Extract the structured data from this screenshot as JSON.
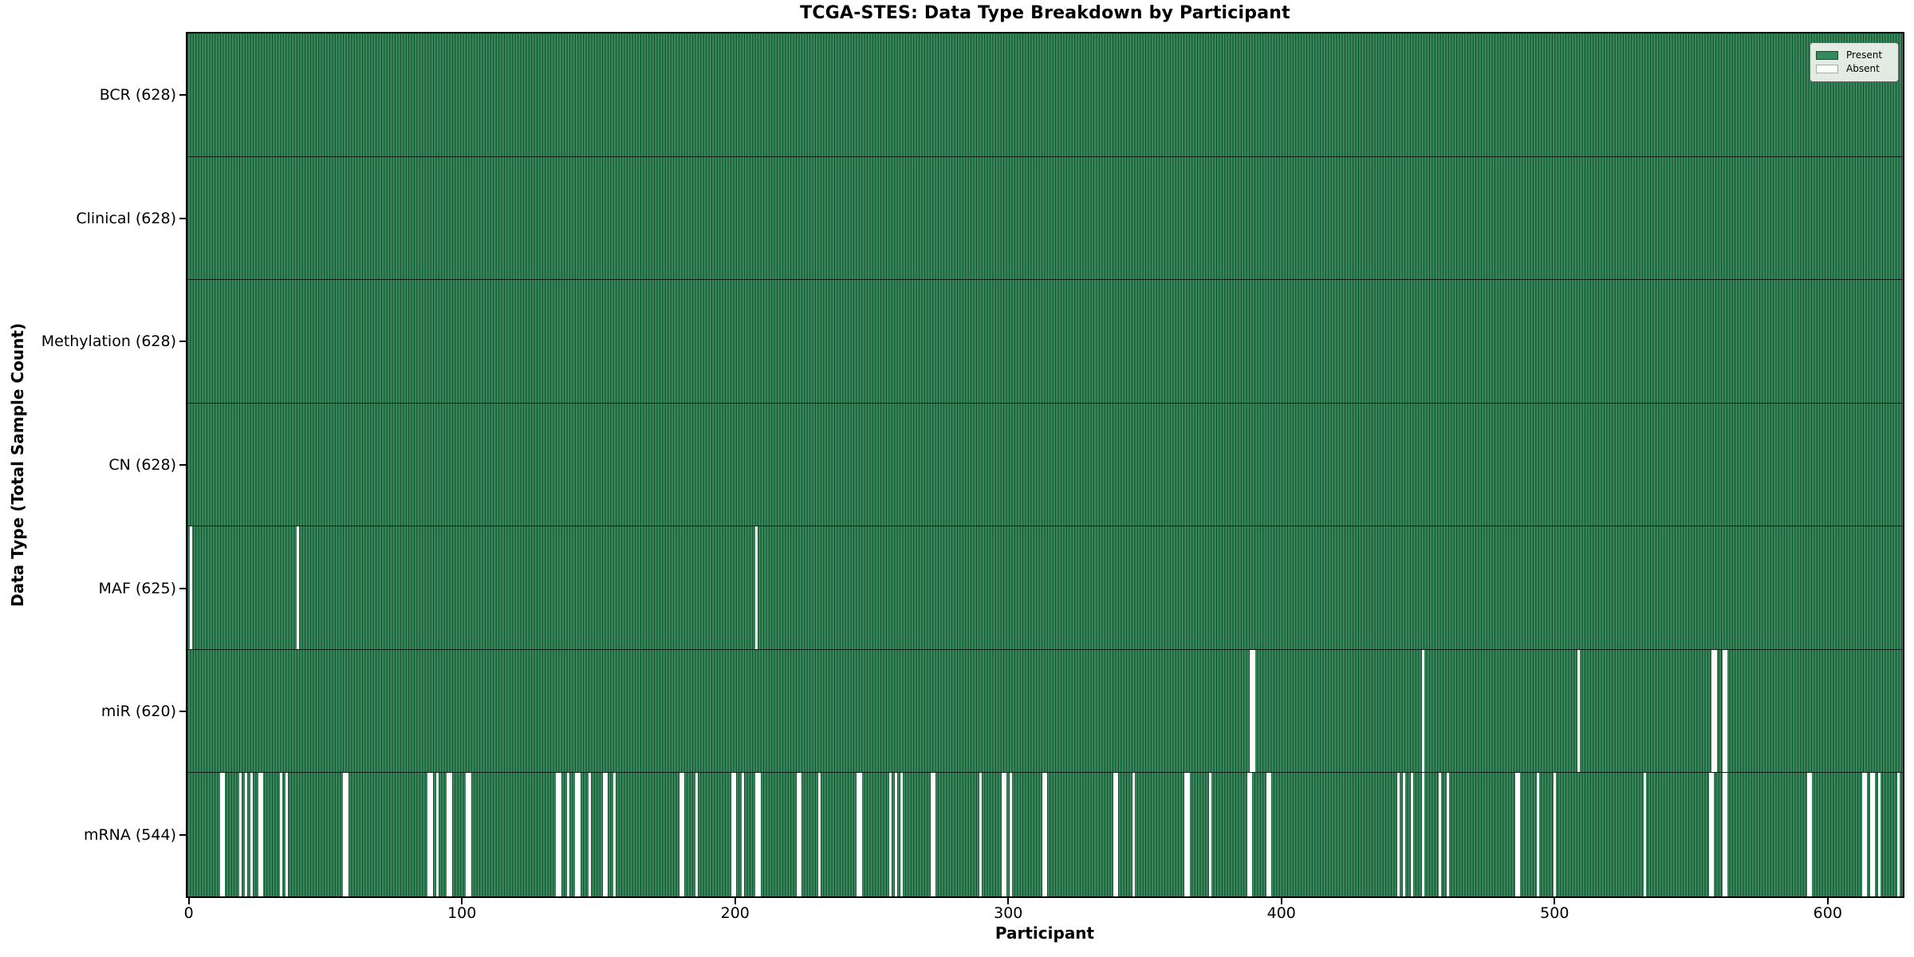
{
  "figure": {
    "title": "TCGA-STES: Data Type Breakdown by Participant",
    "xlabel": "Participant",
    "ylabel": "Data Type (Total Sample Count)"
  },
  "colors": {
    "present": "#358a5b",
    "bar_edge": "rgba(0,0,0,0.5)",
    "row_divider": "rgba(0,0,0,0.75)",
    "absent": "#ffffff",
    "axis": "#000000",
    "legend_bg": "#f2f5f0",
    "legend_border": "#666666",
    "present_swatch_border": "#1e4d33",
    "absent_swatch_border": "#aaaaaa"
  },
  "legend": {
    "entries": [
      {
        "key": "present",
        "label": "Present",
        "color": "#358a5b"
      },
      {
        "key": "absent",
        "label": "Absent",
        "color": "#ffffff"
      }
    ]
  },
  "chart_data": {
    "type": "heatmap",
    "title": "TCGA-STES: Data Type Breakdown by Participant",
    "xlabel": "Participant",
    "ylabel": "Data Type (Total Sample Count)",
    "n_participants": 628,
    "x_ticks": [
      0,
      100,
      200,
      300,
      400,
      500,
      600
    ],
    "legend_position": "upper right",
    "grid": false,
    "value_semantics": {
      "present": 1,
      "absent": 0
    },
    "rows": [
      {
        "key": "bcr",
        "label": "BCR (628)",
        "total_present": 628,
        "absent_ranges": []
      },
      {
        "key": "clinical",
        "label": "Clinical (628)",
        "total_present": 628,
        "absent_ranges": []
      },
      {
        "key": "methylation",
        "label": "Methylation (628)",
        "total_present": 628,
        "absent_ranges": []
      },
      {
        "key": "cn",
        "label": "CN (628)",
        "total_present": 628,
        "absent_ranges": []
      },
      {
        "key": "maf",
        "label": "MAF (625)",
        "total_present": 625,
        "absent_ranges": [
          [
            1,
            1
          ],
          [
            40,
            1
          ],
          [
            208,
            1
          ]
        ]
      },
      {
        "key": "mir",
        "label": "miR (620)",
        "total_present": 620,
        "absent_ranges": [
          [
            389,
            2
          ],
          [
            452,
            1
          ],
          [
            509,
            1
          ],
          [
            558,
            2
          ],
          [
            562,
            2
          ]
        ]
      },
      {
        "key": "mrna",
        "label": "mRNA (544)",
        "total_present": 544,
        "absent_ranges": [
          [
            12,
            2
          ],
          [
            19,
            1
          ],
          [
            21,
            1
          ],
          [
            23,
            1
          ],
          [
            26,
            2
          ],
          [
            34,
            1
          ],
          [
            36,
            1
          ],
          [
            57,
            2
          ],
          [
            88,
            2
          ],
          [
            91,
            1
          ],
          [
            95,
            2
          ],
          [
            102,
            2
          ],
          [
            135,
            2
          ],
          [
            139,
            1
          ],
          [
            142,
            2
          ],
          [
            147,
            1
          ],
          [
            152,
            2
          ],
          [
            156,
            1
          ],
          [
            180,
            2
          ],
          [
            186,
            1
          ],
          [
            199,
            2
          ],
          [
            203,
            1
          ],
          [
            208,
            2
          ],
          [
            223,
            2
          ],
          [
            231,
            1
          ],
          [
            245,
            2
          ],
          [
            257,
            1
          ],
          [
            259,
            1
          ],
          [
            261,
            1
          ],
          [
            272,
            2
          ],
          [
            290,
            1
          ],
          [
            298,
            2
          ],
          [
            301,
            1
          ],
          [
            313,
            2
          ],
          [
            339,
            2
          ],
          [
            346,
            1
          ],
          [
            365,
            2
          ],
          [
            374,
            1
          ],
          [
            388,
            2
          ],
          [
            395,
            2
          ],
          [
            443,
            1
          ],
          [
            445,
            1
          ],
          [
            448,
            1
          ],
          [
            452,
            1
          ],
          [
            458,
            1
          ],
          [
            461,
            1
          ],
          [
            486,
            2
          ],
          [
            494,
            1
          ],
          [
            500,
            1
          ],
          [
            533,
            1
          ],
          [
            557,
            2
          ],
          [
            562,
            2
          ],
          [
            593,
            2
          ],
          [
            613,
            2
          ],
          [
            616,
            2
          ],
          [
            619,
            1
          ],
          [
            626,
            1
          ]
        ]
      }
    ]
  }
}
